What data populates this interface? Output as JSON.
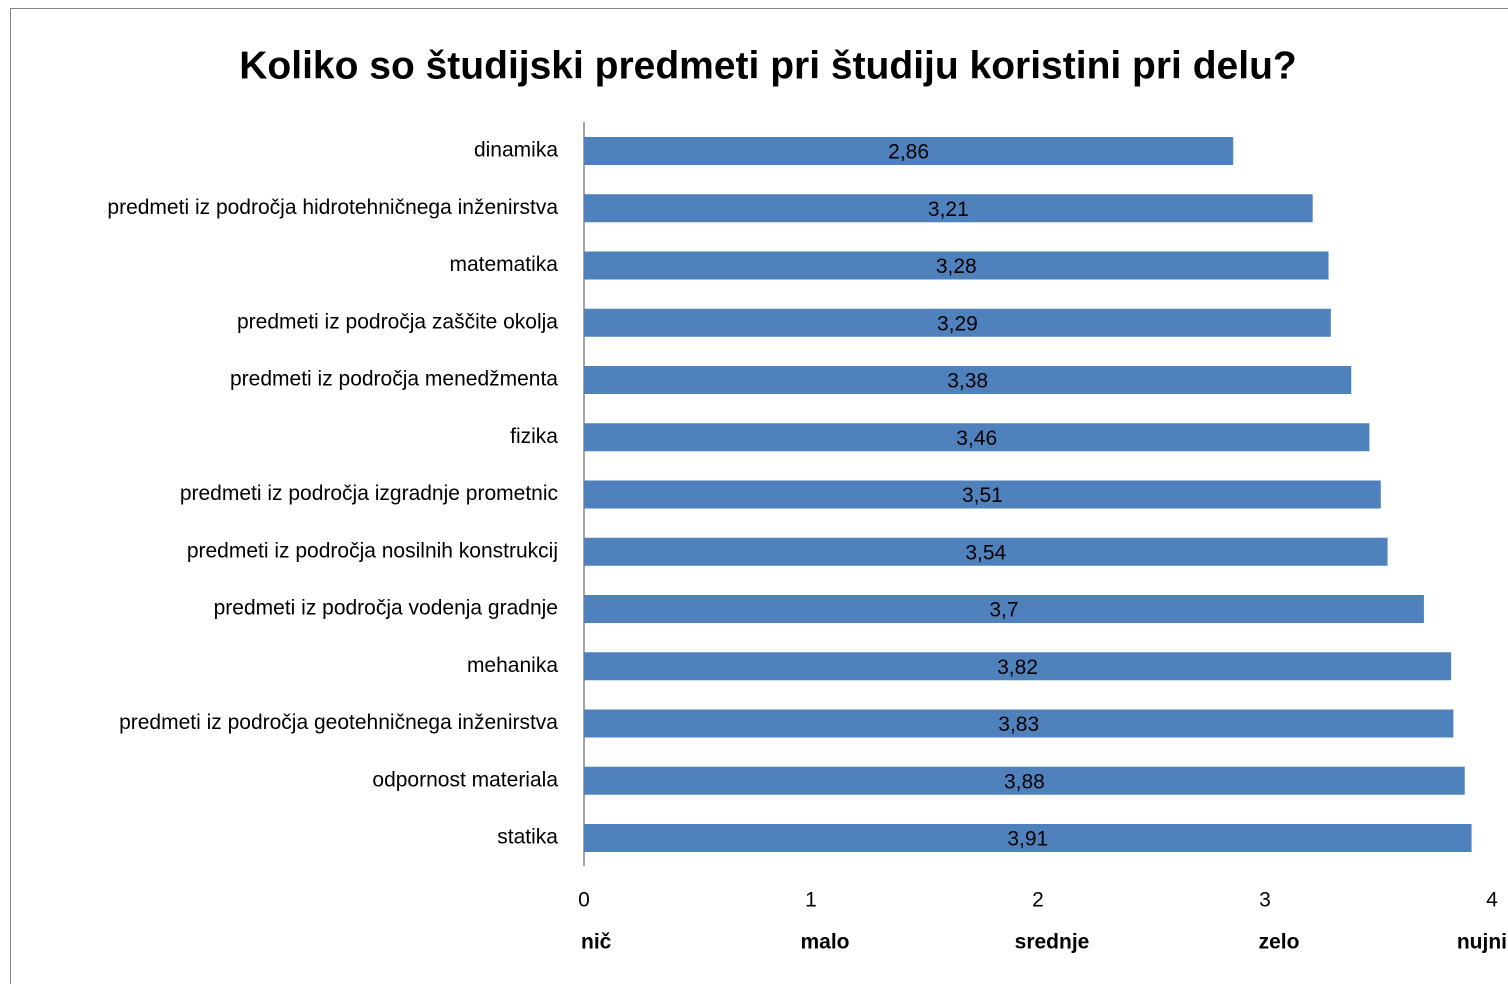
{
  "chart_data": {
    "type": "barh",
    "title": "Koliko so študijski predmeti pri študiju koristini pri delu?",
    "categories": [
      "dinamika",
      "predmeti iz področja hidrotehničnega inženirstva",
      "matematika",
      "predmeti iz področja zaščite okolja",
      "predmeti iz področja menedžmenta",
      "fizika",
      "predmeti iz področja izgradnje prometnic",
      "predmeti iz področja nosilnih konstrukcij",
      "predmeti iz področja vodenja gradnje",
      "mehanika",
      "predmeti iz področja geotehničnega inženirstva",
      "odpornost materiala",
      "statika"
    ],
    "values": [
      2.86,
      3.21,
      3.28,
      3.29,
      3.38,
      3.46,
      3.51,
      3.54,
      3.7,
      3.82,
      3.83,
      3.88,
      3.91
    ],
    "value_labels": [
      "2,86",
      "3,21",
      "3,28",
      "3,29",
      "3,38",
      "3,46",
      "3,51",
      "3,54",
      "3,7",
      "3,82",
      "3,83",
      "3,88",
      "3,91"
    ],
    "color": "#4f81bd",
    "xlim": [
      0,
      4
    ],
    "xticks": [
      0,
      1,
      2,
      3,
      4
    ],
    "scale_labels": [
      "nič",
      "malo",
      "srednje",
      "zelo",
      "nujni"
    ],
    "grid": false
  }
}
